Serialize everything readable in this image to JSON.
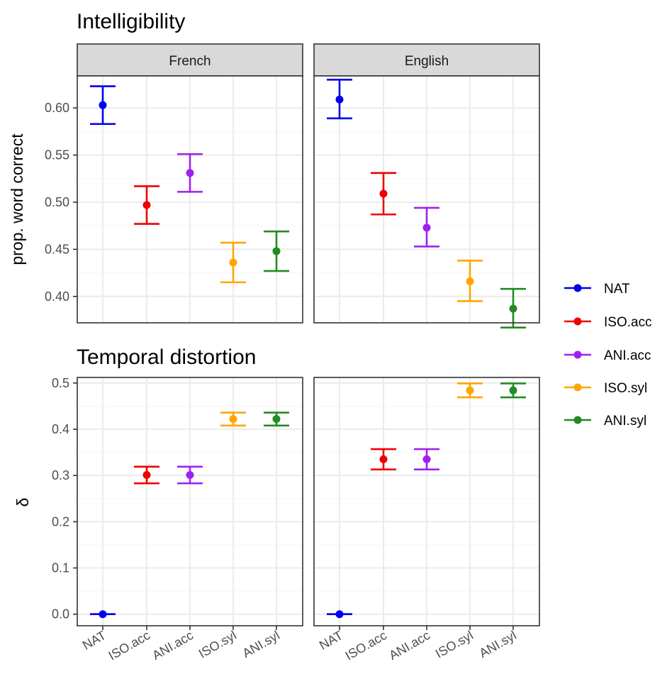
{
  "chart_data": [
    {
      "type": "scatter",
      "title": "Intelligibility",
      "ylabel": "prop. word correct",
      "xlabel": "",
      "ylim": [
        0.372,
        0.634
      ],
      "yticks": [
        0.4,
        0.45,
        0.5,
        0.55,
        0.6
      ],
      "ytick_labels": [
        "0.40",
        "0.45",
        "0.50",
        "0.55",
        "0.60"
      ],
      "grid": true,
      "facets": [
        "French",
        "English"
      ],
      "categories": [
        "NAT",
        "ISO.acc",
        "ANI.acc",
        "ISO.syl",
        "ANI.syl"
      ],
      "series": [
        {
          "name": "French",
          "values": [
            0.603,
            0.497,
            0.531,
            0.436,
            0.448
          ],
          "lower": [
            0.583,
            0.477,
            0.511,
            0.415,
            0.427
          ],
          "upper": [
            0.623,
            0.517,
            0.551,
            0.457,
            0.469
          ]
        },
        {
          "name": "English",
          "values": [
            0.609,
            0.509,
            0.473,
            0.416,
            0.387
          ],
          "lower": [
            0.589,
            0.487,
            0.453,
            0.395,
            0.367
          ],
          "upper": [
            0.63,
            0.531,
            0.494,
            0.438,
            0.408
          ]
        }
      ]
    },
    {
      "type": "scatter",
      "title": "Temporal distortion",
      "ylabel": "δ",
      "xlabel": "",
      "ylim": [
        -0.025,
        0.512
      ],
      "yticks": [
        0.0,
        0.1,
        0.2,
        0.3,
        0.4,
        0.5
      ],
      "ytick_labels": [
        "0.0",
        "0.1",
        "0.2",
        "0.3",
        "0.4",
        "0.5"
      ],
      "grid": true,
      "facets": [
        "French",
        "English"
      ],
      "categories": [
        "NAT",
        "ISO.acc",
        "ANI.acc",
        "ISO.syl",
        "ANI.syl"
      ],
      "series": [
        {
          "name": "French",
          "values": [
            0.0,
            0.301,
            0.301,
            0.422,
            0.422
          ],
          "lower": [
            0.0,
            0.283,
            0.283,
            0.408,
            0.408
          ],
          "upper": [
            0.0,
            0.319,
            0.319,
            0.436,
            0.436
          ]
        },
        {
          "name": "English",
          "values": [
            0.0,
            0.335,
            0.335,
            0.484,
            0.484
          ],
          "lower": [
            0.0,
            0.313,
            0.313,
            0.469,
            0.469
          ],
          "upper": [
            0.0,
            0.357,
            0.357,
            0.499,
            0.499
          ]
        }
      ]
    }
  ],
  "legend": {
    "position": "right",
    "items": [
      {
        "label": "NAT",
        "color": "#0000ee"
      },
      {
        "label": "ISO.acc",
        "color": "#ee0000"
      },
      {
        "label": "ANI.acc",
        "color": "#a020f0"
      },
      {
        "label": "ISO.syl",
        "color": "#ffa500"
      },
      {
        "label": "ANI.syl",
        "color": "#228b22"
      }
    ]
  },
  "colors": {
    "NAT": "#0000ee",
    "ISO.acc": "#ee0000",
    "ANI.acc": "#a020f0",
    "ISO.syl": "#ffa500",
    "ANI.syl": "#228b22"
  }
}
